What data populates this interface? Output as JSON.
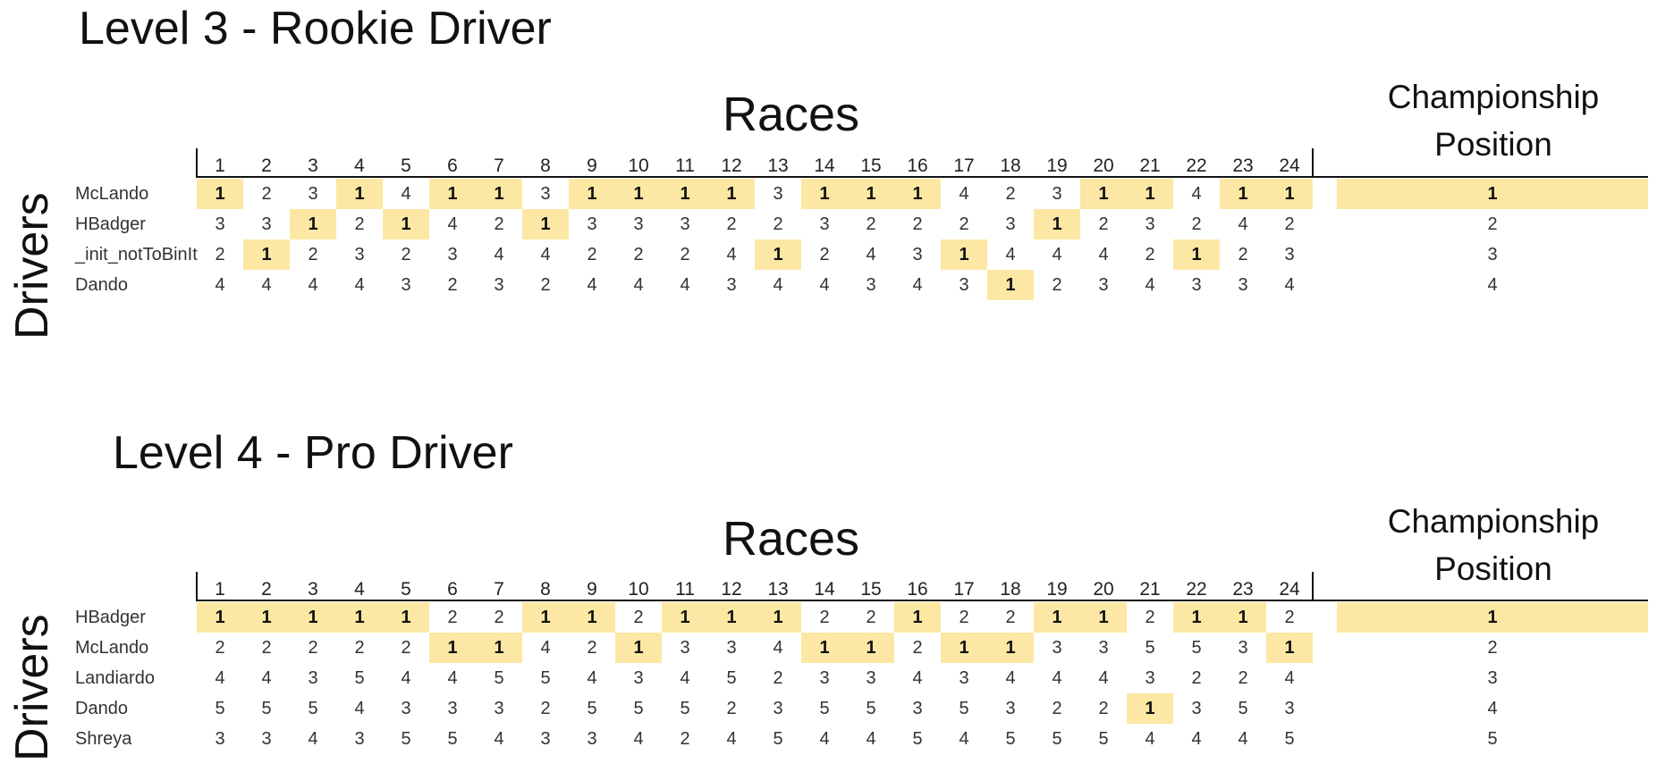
{
  "tables": [
    {
      "title": "Level 3 - Rookie Driver",
      "races_label": "Races",
      "championship_label_line1": "Championship",
      "championship_label_line2": "Position",
      "drivers_label": "Drivers",
      "race_numbers": [
        "1",
        "2",
        "3",
        "4",
        "5",
        "6",
        "7",
        "8",
        "9",
        "10",
        "11",
        "12",
        "13",
        "14",
        "15",
        "16",
        "17",
        "18",
        "19",
        "20",
        "21",
        "22",
        "23",
        "24"
      ],
      "rows": [
        {
          "driver": "McLando",
          "results": [
            1,
            2,
            3,
            1,
            4,
            1,
            1,
            3,
            1,
            1,
            1,
            1,
            3,
            1,
            1,
            1,
            4,
            2,
            3,
            1,
            1,
            4,
            1,
            1
          ],
          "championship_position": 1
        },
        {
          "driver": "HBadger",
          "results": [
            3,
            3,
            1,
            2,
            1,
            4,
            2,
            1,
            3,
            3,
            3,
            2,
            2,
            3,
            2,
            2,
            2,
            3,
            1,
            2,
            3,
            2,
            4,
            2
          ],
          "championship_position": 2
        },
        {
          "driver": "_init_notToBinIt",
          "results": [
            2,
            1,
            2,
            3,
            2,
            3,
            4,
            4,
            2,
            2,
            2,
            4,
            1,
            2,
            4,
            3,
            1,
            4,
            4,
            4,
            2,
            1,
            2,
            3
          ],
          "championship_position": 3
        },
        {
          "driver": "Dando",
          "results": [
            4,
            4,
            4,
            4,
            3,
            2,
            3,
            2,
            4,
            4,
            4,
            3,
            4,
            4,
            3,
            4,
            3,
            1,
            2,
            3,
            4,
            3,
            3,
            4
          ],
          "championship_position": 4
        }
      ]
    },
    {
      "title": "Level 4 - Pro Driver",
      "races_label": "Races",
      "championship_label_line1": "Championship",
      "championship_label_line2": "Position",
      "drivers_label": "Drivers",
      "race_numbers": [
        "1",
        "2",
        "3",
        "4",
        "5",
        "6",
        "7",
        "8",
        "9",
        "10",
        "11",
        "12",
        "13",
        "14",
        "15",
        "16",
        "17",
        "18",
        "19",
        "20",
        "21",
        "22",
        "23",
        "24"
      ],
      "rows": [
        {
          "driver": "HBadger",
          "results": [
            1,
            1,
            1,
            1,
            1,
            2,
            2,
            1,
            1,
            2,
            1,
            1,
            1,
            2,
            2,
            1,
            2,
            2,
            1,
            1,
            2,
            1,
            1,
            2
          ],
          "championship_position": 1
        },
        {
          "driver": "McLando",
          "results": [
            2,
            2,
            2,
            2,
            2,
            1,
            1,
            4,
            2,
            1,
            3,
            3,
            4,
            1,
            1,
            2,
            1,
            1,
            3,
            3,
            5,
            5,
            3,
            1
          ],
          "championship_position": 2
        },
        {
          "driver": "Landiardo",
          "results": [
            4,
            4,
            3,
            5,
            4,
            4,
            5,
            5,
            4,
            3,
            4,
            5,
            2,
            3,
            3,
            4,
            3,
            4,
            4,
            4,
            3,
            2,
            2,
            4
          ],
          "championship_position": 3
        },
        {
          "driver": "Dando",
          "results": [
            5,
            5,
            5,
            4,
            3,
            3,
            3,
            2,
            5,
            5,
            5,
            2,
            3,
            5,
            5,
            3,
            5,
            3,
            2,
            2,
            1,
            3,
            5,
            3
          ],
          "championship_position": 4
        },
        {
          "driver": "Shreya",
          "results": [
            3,
            3,
            4,
            3,
            5,
            5,
            4,
            3,
            3,
            4,
            2,
            4,
            5,
            4,
            4,
            5,
            4,
            5,
            5,
            5,
            4,
            4,
            4,
            5
          ],
          "championship_position": 5
        }
      ]
    }
  ]
}
